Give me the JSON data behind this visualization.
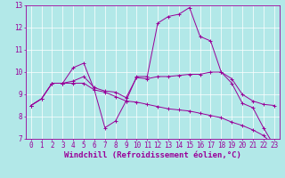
{
  "xlabel": "Windchill (Refroidissement éolien,°C)",
  "background_color": "#b2e8e8",
  "line_color": "#990099",
  "grid_color": "#ffffff",
  "xlim": [
    -0.5,
    23.5
  ],
  "ylim": [
    7,
    13
  ],
  "xticks": [
    0,
    1,
    2,
    3,
    4,
    5,
    6,
    7,
    8,
    9,
    10,
    11,
    12,
    13,
    14,
    15,
    16,
    17,
    18,
    19,
    20,
    21,
    22,
    23
  ],
  "yticks": [
    7,
    8,
    9,
    10,
    11,
    12,
    13
  ],
  "line1_x": [
    0,
    1,
    2,
    3,
    4,
    5,
    6,
    7,
    8,
    9,
    10,
    11,
    12,
    13,
    14,
    15,
    16,
    17,
    18,
    19,
    20,
    21,
    22,
    23
  ],
  "line1_y": [
    8.5,
    8.8,
    9.5,
    9.5,
    10.2,
    10.4,
    9.2,
    7.5,
    7.8,
    8.7,
    9.8,
    9.8,
    12.2,
    12.5,
    12.6,
    12.9,
    11.6,
    11.4,
    10.0,
    9.5,
    8.6,
    8.4,
    7.5,
    6.7
  ],
  "line2_x": [
    0,
    1,
    2,
    3,
    4,
    5,
    6,
    7,
    8,
    9,
    10,
    11,
    12,
    13,
    14,
    15,
    16,
    17,
    18,
    19,
    20,
    21,
    22,
    23
  ],
  "line2_y": [
    8.5,
    8.8,
    9.5,
    9.5,
    9.6,
    9.8,
    9.3,
    9.15,
    9.1,
    8.85,
    9.75,
    9.7,
    9.8,
    9.8,
    9.85,
    9.9,
    9.9,
    10.0,
    10.0,
    9.7,
    9.0,
    8.7,
    8.55,
    8.5
  ],
  "line3_x": [
    0,
    1,
    2,
    3,
    4,
    5,
    6,
    7,
    8,
    9,
    10,
    11,
    12,
    13,
    14,
    15,
    16,
    17,
    18,
    19,
    20,
    21,
    22,
    23
  ],
  "line3_y": [
    8.5,
    8.8,
    9.5,
    9.5,
    9.5,
    9.5,
    9.2,
    9.1,
    8.9,
    8.7,
    8.65,
    8.55,
    8.45,
    8.35,
    8.3,
    8.25,
    8.15,
    8.05,
    7.95,
    7.75,
    7.6,
    7.4,
    7.15,
    6.7
  ],
  "tick_fontsize": 5.5,
  "label_fontsize": 6.5,
  "figsize": [
    3.2,
    2.0
  ],
  "dpi": 100
}
